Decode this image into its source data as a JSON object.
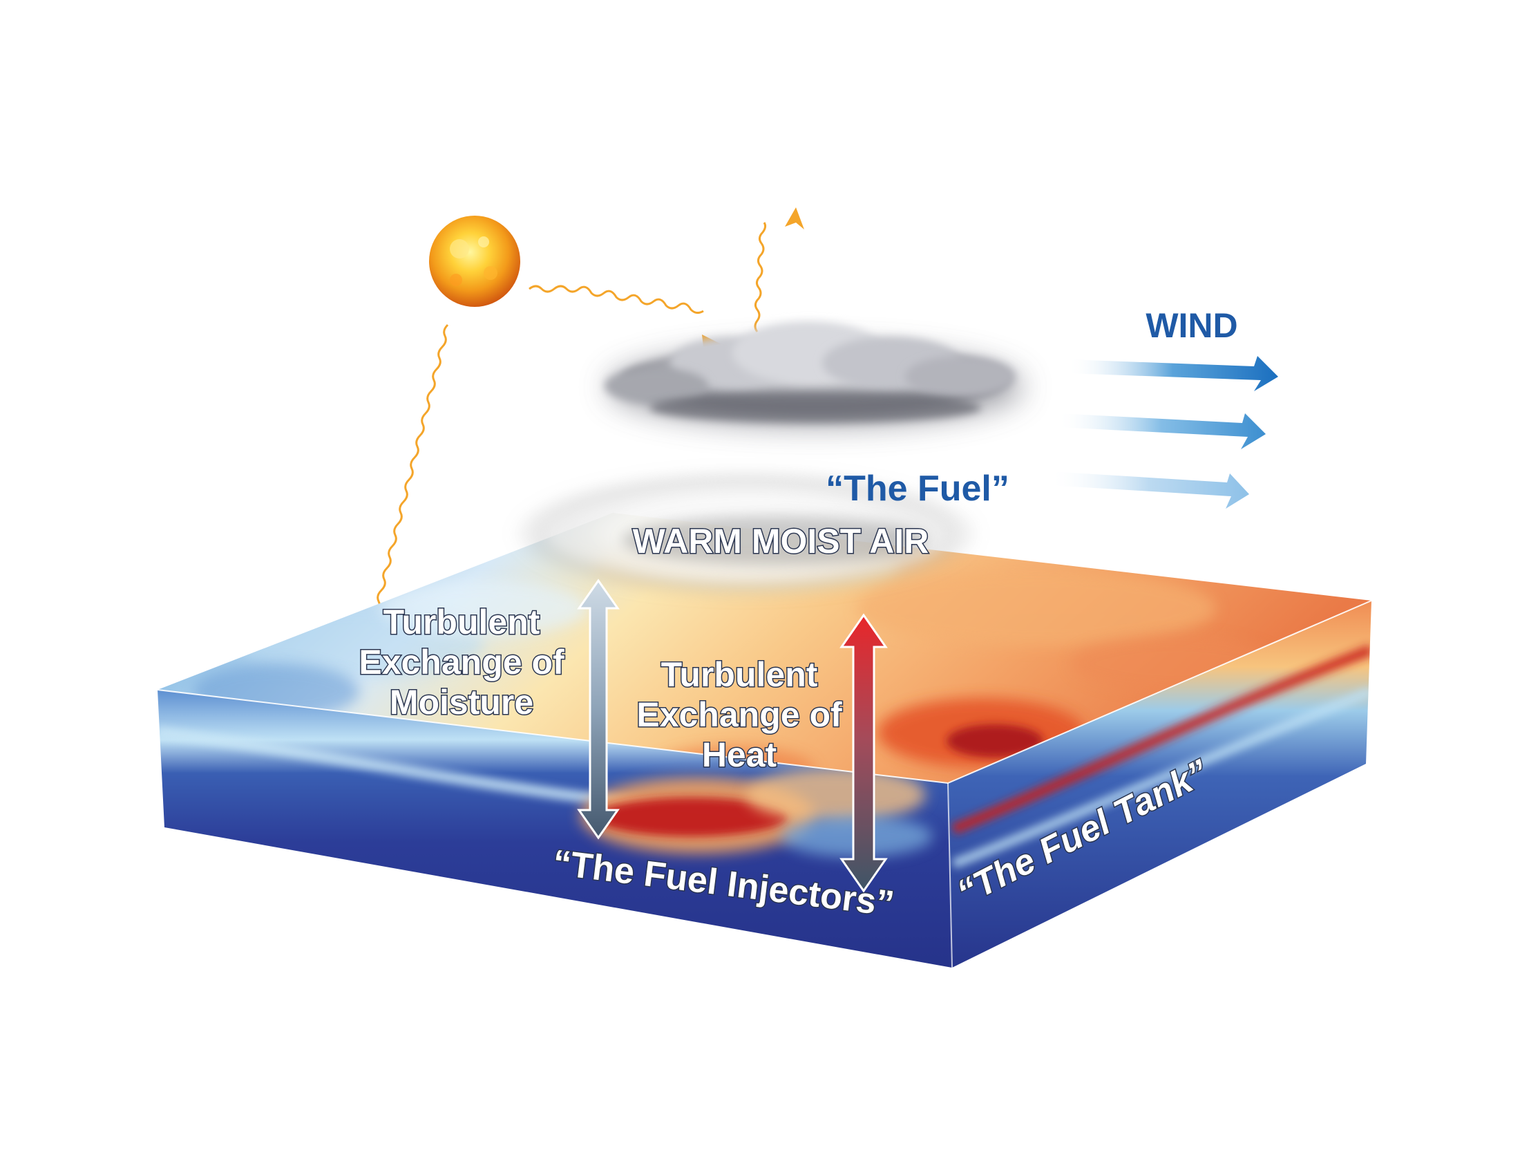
{
  "labels": {
    "wind": "WIND",
    "fuel": "“The Fuel”",
    "warm_moist_air": "WARM MOIST AIR",
    "moisture_line1": "Turbulent",
    "moisture_line2": "Exchange of",
    "moisture_line3": "Moisture",
    "heat_line1": "Turbulent",
    "heat_line2": "Exchange of",
    "heat_line3": "Heat",
    "fuel_injectors": "“The Fuel Injectors”",
    "fuel_tank": "“The Fuel Tank”"
  },
  "icons": {
    "sun": "sun-icon",
    "cloud": "cloud-icon",
    "wind_arrows": "wind-arrow-icon"
  },
  "colors": {
    "wind_text": "#1f5aa6",
    "fuel_text": "#1f5aa6",
    "sun_rays": "#f4a52a",
    "ocean_deep": "#2a3a93",
    "ocean_warm": "#e2402c",
    "moisture_arrow": "#8fa6bd",
    "heat_arrow": "#d42b2b"
  }
}
